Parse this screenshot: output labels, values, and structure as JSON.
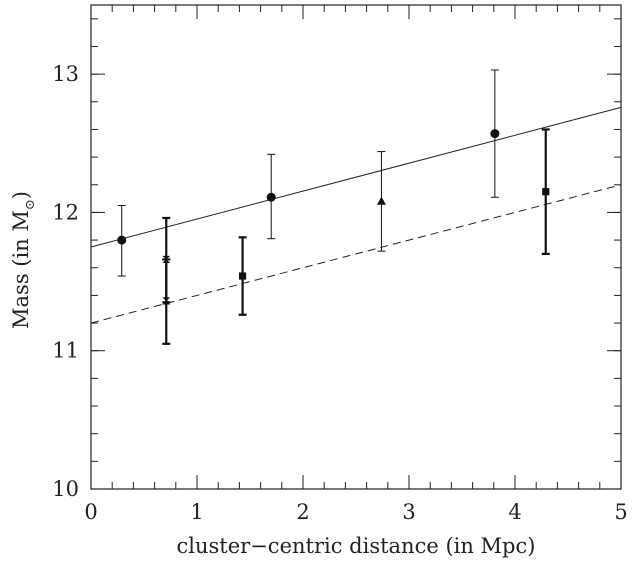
{
  "chart_data": {
    "type": "scatter",
    "title": "",
    "xlabel": "cluster−centric distance (in Mpc)",
    "ylabel_main": "Mass (in M",
    "ylabel_sub": "⊙",
    "ylabel_close": ")",
    "xlim": [
      0,
      5
    ],
    "ylim": [
      10,
      13.5
    ],
    "x_ticks": [
      0,
      1,
      2,
      3,
      4,
      5
    ],
    "x_tick_labels": [
      "0",
      "1",
      "2",
      "3",
      "4",
      "5"
    ],
    "y_ticks": [
      10,
      11,
      12,
      13
    ],
    "y_tick_labels": [
      "10",
      "11",
      "12",
      "13"
    ],
    "x_minor_step": 0.2,
    "y_minor_step": 0.2,
    "grid": false,
    "lines": [
      {
        "style": "solid",
        "x": [
          0,
          5
        ],
        "y": [
          11.75,
          12.76
        ]
      },
      {
        "style": "dashed",
        "x": [
          0,
          5
        ],
        "y": [
          11.2,
          12.2
        ]
      }
    ],
    "points": [
      {
        "marker": "circle",
        "x": 0.29,
        "y": 11.8,
        "yerr": [
          11.54,
          12.05
        ],
        "thick": false
      },
      {
        "marker": "hourglass",
        "x": 0.71,
        "y": 11.66,
        "yerr": [
          11.35,
          11.96
        ],
        "thick": true
      },
      {
        "marker": "hourglass",
        "x": 0.71,
        "y": 11.36,
        "yerr": [
          11.05,
          11.66
        ],
        "thick": true
      },
      {
        "marker": "square",
        "x": 1.43,
        "y": 11.54,
        "yerr": [
          11.26,
          11.82
        ],
        "thick": true
      },
      {
        "marker": "circle",
        "x": 1.7,
        "y": 12.11,
        "yerr": [
          11.81,
          12.42
        ],
        "thick": false
      },
      {
        "marker": "triangle",
        "x": 2.74,
        "y": 12.08,
        "yerr": [
          11.72,
          12.44
        ],
        "thick": false
      },
      {
        "marker": "circle",
        "x": 3.81,
        "y": 12.57,
        "yerr": [
          12.11,
          13.03
        ],
        "thick": false
      },
      {
        "marker": "square",
        "x": 4.29,
        "y": 12.15,
        "yerr": [
          11.7,
          12.6
        ],
        "thick": true
      }
    ]
  }
}
